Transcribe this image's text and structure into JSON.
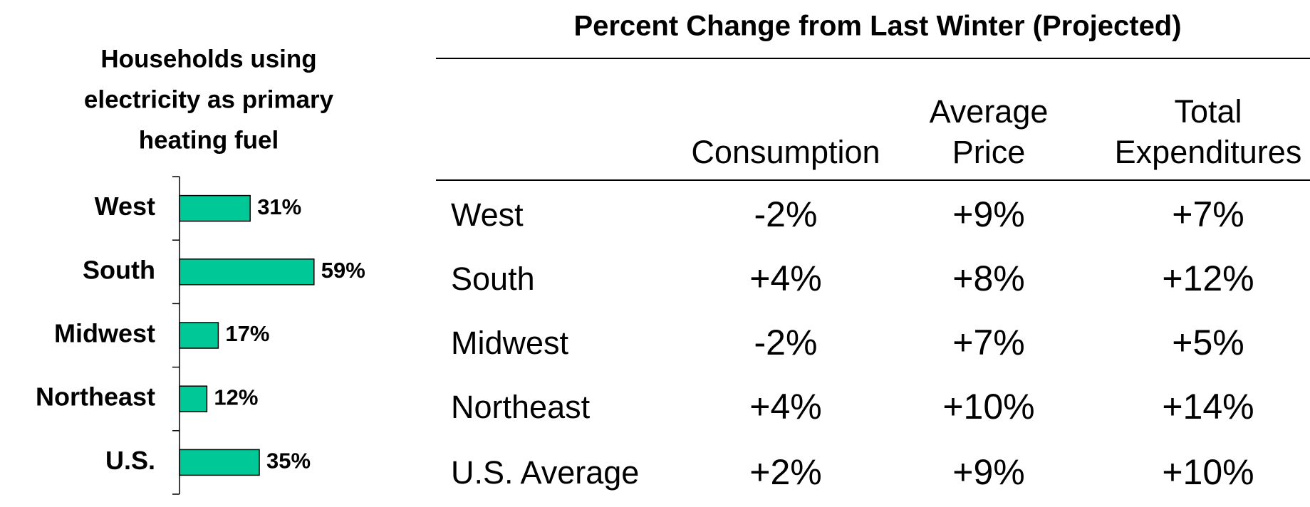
{
  "chart_data": {
    "type": "bar",
    "orientation": "horizontal",
    "title": [
      "Households using",
      "electricity as primary",
      "heating fuel"
    ],
    "categories": [
      "West",
      "South",
      "Midwest",
      "Northeast",
      "U.S."
    ],
    "values": [
      31,
      59,
      17,
      12,
      35
    ],
    "value_labels": [
      "31%",
      "59%",
      "17%",
      "12%",
      "35%"
    ],
    "color": "#00c896"
  },
  "table": {
    "title": "Percent Change from Last Winter (Projected)",
    "columns": [
      [
        "Consumption"
      ],
      [
        "Average",
        "Price"
      ],
      [
        "Total",
        "Expenditures"
      ]
    ],
    "rows": [
      {
        "label": "West",
        "cells": [
          "-2%",
          "+9%",
          "+7%"
        ]
      },
      {
        "label": "South",
        "cells": [
          "+4%",
          "+8%",
          "+12%"
        ]
      },
      {
        "label": "Midwest",
        "cells": [
          "-2%",
          "+7%",
          "+5%"
        ]
      },
      {
        "label": "Northeast",
        "cells": [
          "+4%",
          "+10%",
          "+14%"
        ]
      },
      {
        "label": "U.S. Average",
        "cells": [
          "+2%",
          "+9%",
          "+10%"
        ]
      }
    ]
  }
}
